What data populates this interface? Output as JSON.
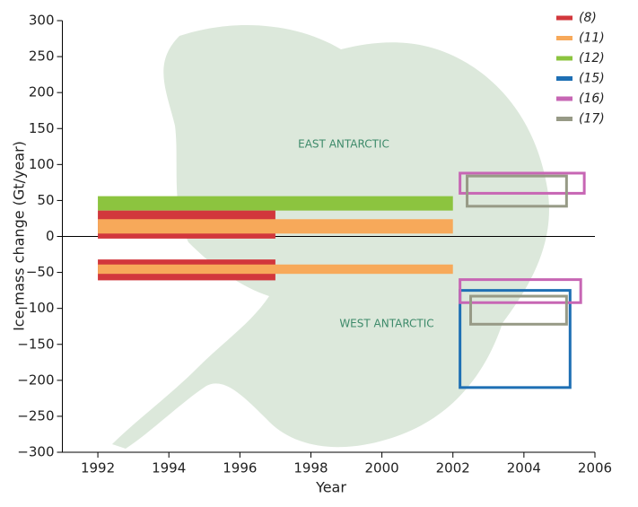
{
  "chart_data": {
    "type": "box-range",
    "xlabel": "Year",
    "ylabel": "Ice mass change (Gt/year)",
    "xlim": [
      1991,
      2006
    ],
    "xticks": [
      1992,
      1994,
      1996,
      1998,
      2000,
      2002,
      2004,
      2006
    ],
    "ylim": [
      -300,
      300
    ],
    "yticks": [
      {
        "value": -300,
        "label": "−300"
      },
      {
        "value": -250,
        "label": "−250"
      },
      {
        "value": -200,
        "label": "−200"
      },
      {
        "value": -150,
        "label": "−150"
      },
      {
        "value": -100,
        "label": "−100"
      },
      {
        "value": -50,
        "label": "−50"
      },
      0,
      50,
      100,
      150,
      200,
      250,
      300
    ],
    "annotations": [
      "EAST ANTARCTIC",
      "WEST ANTARCTIC"
    ],
    "series": [
      {
        "name": "(12)",
        "color": "#8cc43f",
        "style": "filled",
        "boxes": [
          {
            "x": [
              1992,
              2002
            ],
            "y": [
              36,
              56
            ]
          }
        ]
      },
      {
        "name": "(8)",
        "color": "#d2373c",
        "style": "filled",
        "boxes": [
          {
            "x": [
              1992,
              1997
            ],
            "y": [
              -3,
              36
            ]
          },
          {
            "x": [
              1992,
              1997
            ],
            "y": [
              -61,
              -32
            ]
          }
        ]
      },
      {
        "name": "(11)",
        "color": "#f7a95a",
        "style": "filled",
        "boxes": [
          {
            "x": [
              1992,
              2002
            ],
            "y": [
              4,
              24
            ]
          },
          {
            "x": [
              1992,
              2002
            ],
            "y": [
              -52,
              -39
            ]
          }
        ]
      },
      {
        "name": "(15)",
        "color": "#1e6fb4",
        "style": "outline",
        "boxes": [
          {
            "x": [
              2002.2,
              2005.3
            ],
            "y": [
              -210,
              -75
            ]
          }
        ]
      },
      {
        "name": "(16)",
        "color": "#c766b4",
        "style": "outline",
        "boxes": [
          {
            "x": [
              2002.2,
              2005.7
            ],
            "y": [
              60,
              88
            ]
          },
          {
            "x": [
              2002.2,
              2005.6
            ],
            "y": [
              -92,
              -60
            ]
          }
        ]
      },
      {
        "name": "(17)",
        "color": "#979a86",
        "style": "outline",
        "boxes": [
          {
            "x": [
              2002.4,
              2005.2
            ],
            "y": [
              42,
              84
            ]
          },
          {
            "x": [
              2002.5,
              2005.2
            ],
            "y": [
              -122,
              -83
            ]
          }
        ]
      }
    ],
    "legend_order": [
      1,
      2,
      0,
      3,
      4,
      5
    ]
  }
}
